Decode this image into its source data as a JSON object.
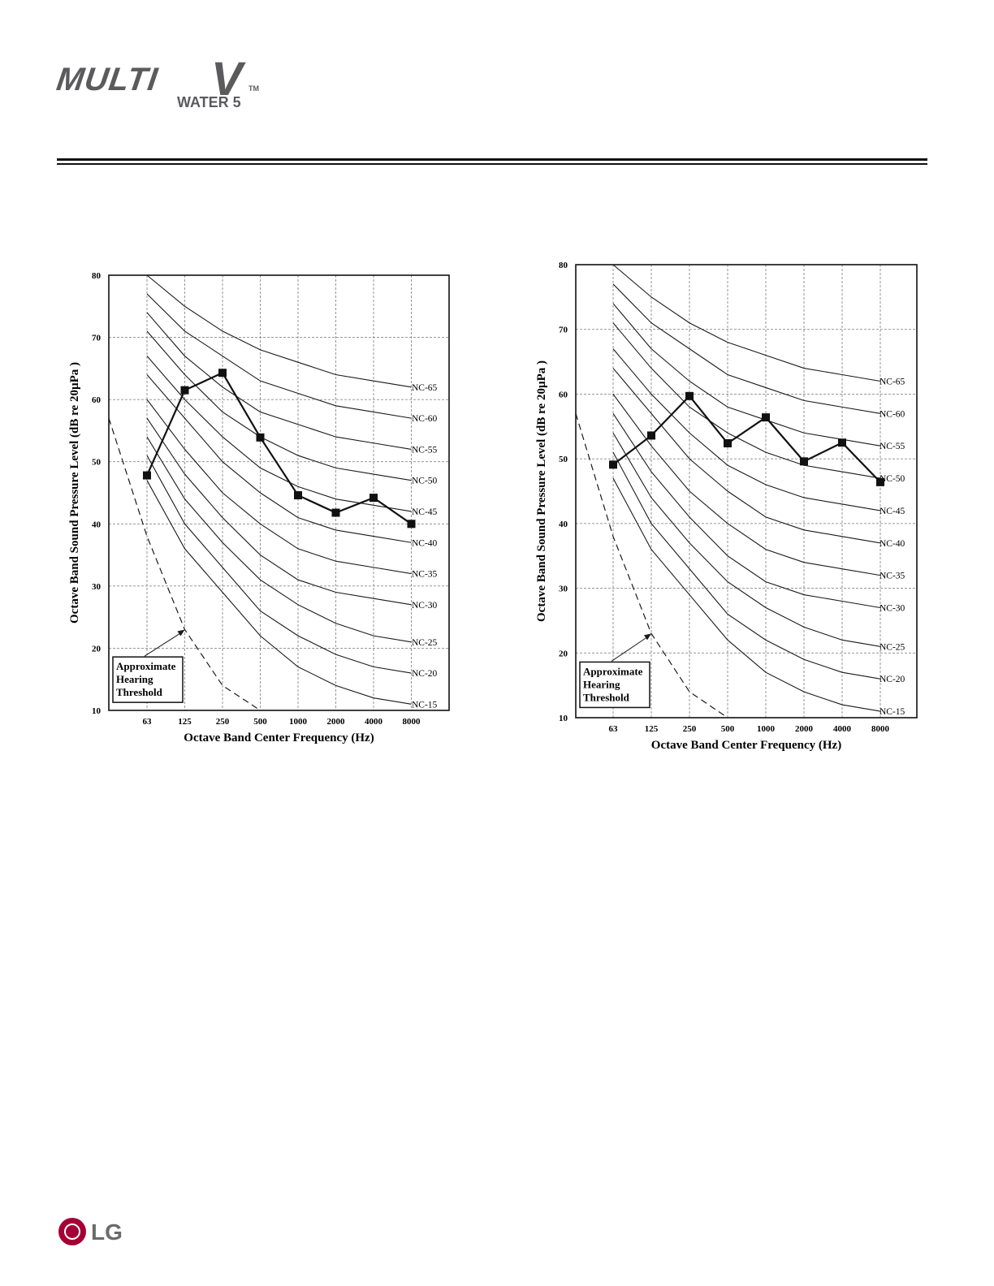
{
  "header": {
    "logo_multi": "MULTI",
    "logo_v": "V",
    "logo_tm": "TM",
    "logo_water": "WATER 5"
  },
  "footer": {
    "brand": "LG"
  },
  "chart_data": [
    {
      "type": "line",
      "title": "",
      "xlabel": "Octave Band Center Frequency (Hz)",
      "ylabel": "Octave Band Sound Pressure Level (dB re 20µPa )",
      "categories": [
        "63",
        "125",
        "250",
        "500",
        "1000",
        "2000",
        "4000",
        "8000"
      ],
      "ylim": [
        10,
        80
      ],
      "yticks": [
        10,
        20,
        30,
        40,
        50,
        60,
        70,
        80
      ],
      "grid": true,
      "measured": [
        47.8,
        61.5,
        64.3,
        53.9,
        44.6,
        41.8,
        44.2,
        40.0
      ],
      "nc_curves": [
        {
          "name": "NC-65",
          "values": [
            80,
            75,
            71,
            68,
            66,
            64,
            63,
            62
          ]
        },
        {
          "name": "NC-60",
          "values": [
            77,
            71,
            67,
            63,
            61,
            59,
            58,
            57
          ]
        },
        {
          "name": "NC-55",
          "values": [
            74,
            67,
            62,
            58,
            56,
            54,
            53,
            52
          ]
        },
        {
          "name": "NC-50",
          "values": [
            71,
            64,
            58,
            54,
            51,
            49,
            48,
            47
          ]
        },
        {
          "name": "NC-45",
          "values": [
            67,
            60,
            54,
            49,
            46,
            44,
            43,
            42
          ]
        },
        {
          "name": "NC-40",
          "values": [
            64,
            57,
            50,
            45,
            41,
            39,
            38,
            37
          ]
        },
        {
          "name": "NC-35",
          "values": [
            60,
            52,
            45,
            40,
            36,
            34,
            33,
            32
          ]
        },
        {
          "name": "NC-30",
          "values": [
            57,
            48,
            41,
            35,
            31,
            29,
            28,
            27
          ]
        },
        {
          "name": "NC-25",
          "values": [
            54,
            44,
            37,
            31,
            27,
            24,
            22,
            21
          ]
        },
        {
          "name": "NC-20",
          "values": [
            51,
            40,
            33,
            26,
            22,
            19,
            17,
            16
          ]
        },
        {
          "name": "NC-15",
          "values": [
            47,
            36,
            29,
            22,
            17,
            14,
            12,
            11
          ]
        }
      ],
      "hearing_threshold": {
        "x": [
          0,
          1,
          2,
          3
        ],
        "values": [
          38,
          23,
          14,
          10
        ]
      },
      "annotation": "Approximate Hearing Threshold"
    },
    {
      "type": "line",
      "title": "",
      "xlabel": "Octave Band Center Frequency (Hz)",
      "ylabel": "Octave Band Sound Pressure Level (dB re 20µPa )",
      "categories": [
        "63",
        "125",
        "250",
        "500",
        "1000",
        "2000",
        "4000",
        "8000"
      ],
      "ylim": [
        10,
        80
      ],
      "yticks": [
        10,
        20,
        30,
        40,
        50,
        60,
        70,
        80
      ],
      "grid": true,
      "measured": [
        49.1,
        53.6,
        59.7,
        52.4,
        56.4,
        49.6,
        52.5,
        46.4
      ],
      "nc_curves": [
        {
          "name": "NC-65",
          "values": [
            80,
            75,
            71,
            68,
            66,
            64,
            63,
            62
          ]
        },
        {
          "name": "NC-60",
          "values": [
            77,
            71,
            67,
            63,
            61,
            59,
            58,
            57
          ]
        },
        {
          "name": "NC-55",
          "values": [
            74,
            67,
            62,
            58,
            56,
            54,
            53,
            52
          ]
        },
        {
          "name": "NC-50",
          "values": [
            71,
            64,
            58,
            54,
            51,
            49,
            48,
            47
          ]
        },
        {
          "name": "NC-45",
          "values": [
            67,
            60,
            54,
            49,
            46,
            44,
            43,
            42
          ]
        },
        {
          "name": "NC-40",
          "values": [
            64,
            57,
            50,
            45,
            41,
            39,
            38,
            37
          ]
        },
        {
          "name": "NC-35",
          "values": [
            60,
            52,
            45,
            40,
            36,
            34,
            33,
            32
          ]
        },
        {
          "name": "NC-30",
          "values": [
            57,
            48,
            41,
            35,
            31,
            29,
            28,
            27
          ]
        },
        {
          "name": "NC-25",
          "values": [
            54,
            44,
            37,
            31,
            27,
            24,
            22,
            21
          ]
        },
        {
          "name": "NC-20",
          "values": [
            51,
            40,
            33,
            26,
            22,
            19,
            17,
            16
          ]
        },
        {
          "name": "NC-15",
          "values": [
            47,
            36,
            29,
            22,
            17,
            14,
            12,
            11
          ]
        }
      ],
      "hearing_threshold": {
        "x": [
          0,
          1,
          2,
          3
        ],
        "values": [
          38,
          23,
          14,
          10
        ]
      },
      "annotation": "Approximate Hearing Threshold"
    }
  ]
}
